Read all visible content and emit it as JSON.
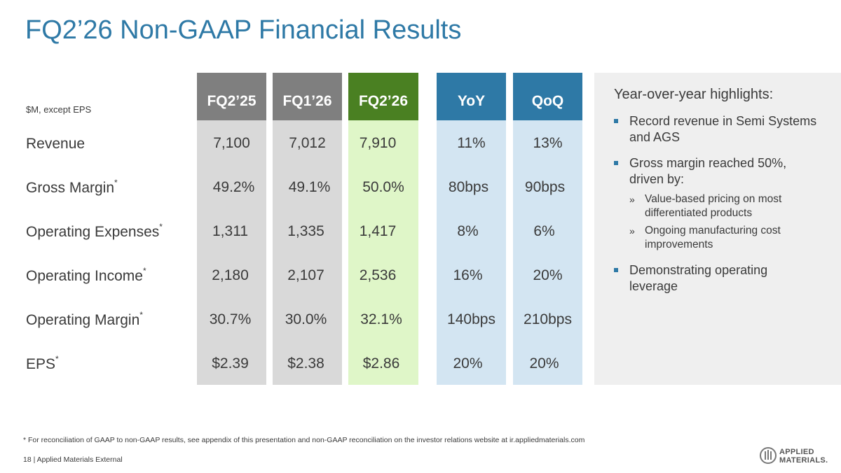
{
  "title": "FQ2’26 Non-GAAP Financial Results",
  "units_note": "$M, except EPS",
  "columns": [
    "FQ2’25",
    "FQ1’26",
    "FQ2’26",
    "YoY",
    "QoQ"
  ],
  "rows": [
    {
      "label": "Revenue",
      "star": "",
      "values": [
        "7,100",
        "7,012",
        "7,910",
        "11%",
        "13%"
      ]
    },
    {
      "label": "Gross Margin",
      "star": "*",
      "values": [
        "49.2%",
        "49.1%",
        "50.0%",
        "80bps",
        "90bps"
      ]
    },
    {
      "label": "Operating Expenses",
      "star": "*",
      "values": [
        "1,311",
        "1,335",
        "1,417",
        "8%",
        "6%"
      ]
    },
    {
      "label": "Operating Income",
      "star": "*",
      "values": [
        "2,180",
        "2,107",
        "2,536",
        "16%",
        "20%"
      ]
    },
    {
      "label": "Operating Margin",
      "star": "*",
      "values": [
        "30.7%",
        "30.0%",
        "32.1%",
        "140bps",
        "210bps"
      ]
    },
    {
      "label": "EPS",
      "star": "*",
      "values": [
        "$2.39",
        "$2.38",
        "$2.86",
        "20%",
        "20%"
      ]
    }
  ],
  "highlights": {
    "title": "Year-over-year highlights:",
    "bullets": [
      "Record revenue in Semi Systems and AGS",
      "Gross margin reached 50%, driven by:",
      "Demonstrating operating leverage"
    ],
    "sub_bullets": [
      "Value-based pricing on most differentiated products",
      "Ongoing manufacturing cost improvements"
    ],
    "sub_marker": "»"
  },
  "footnote": "* For reconciliation of GAAP to non-GAAP results, see appendix of this presentation and non-GAAP reconciliation on the investor relations website at ir.appliedmaterials.com",
  "footer": "18   |  Applied Materials External",
  "logo": {
    "line1": "APPLIED",
    "line2": "MATERIALS."
  },
  "colors": {
    "title": "#2e79a6",
    "prior": "#7f7f7f",
    "current": "#4a8022",
    "change": "#2e79a6"
  }
}
